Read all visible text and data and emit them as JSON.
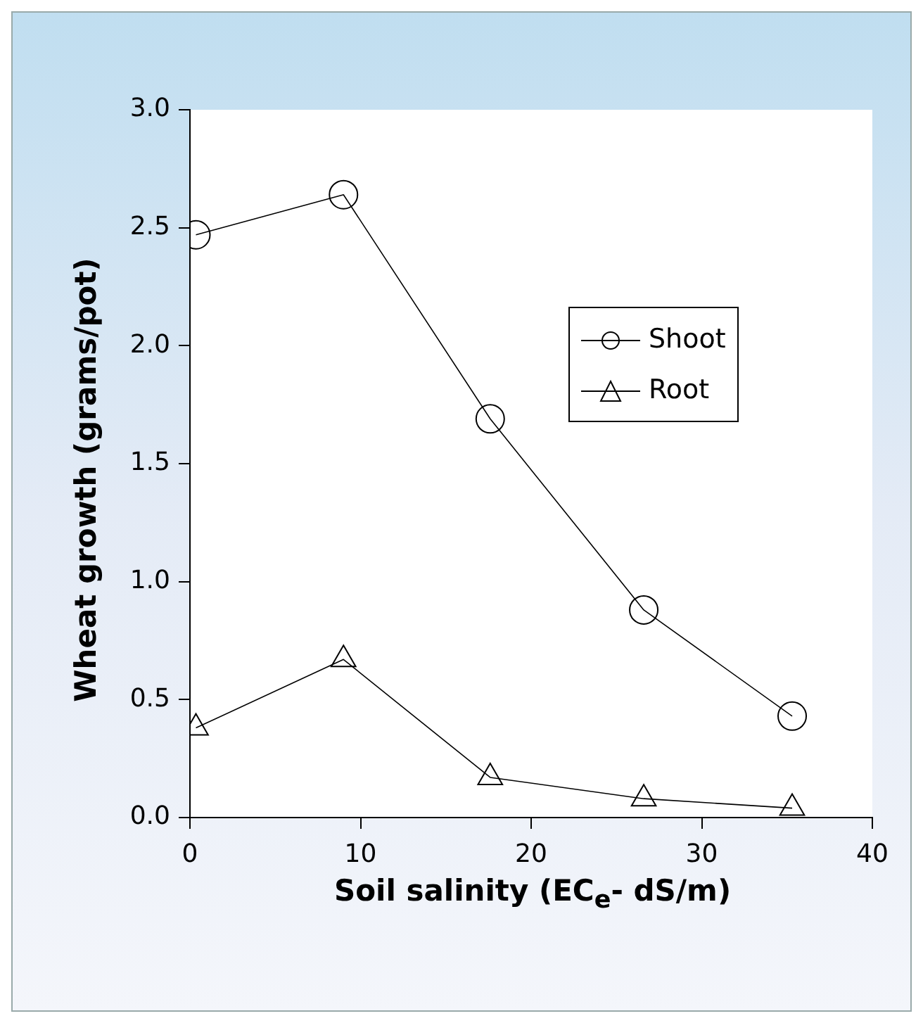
{
  "chart_data": {
    "type": "line",
    "xlabel": "Soil salinity (EC$_{e}$- dS/m)",
    "ylabel": "Wheat growth (grams/pot)",
    "x": [
      0.35,
      9.0,
      17.6,
      26.6,
      35.3
    ],
    "series": [
      {
        "name": "Shoot",
        "color": "#000000",
        "marker": "circle",
        "values": [
          2.47,
          2.64,
          1.69,
          0.88,
          0.43
        ]
      },
      {
        "name": "Root",
        "color": "#000000",
        "marker": "triangle",
        "values": [
          0.38,
          0.67,
          0.17,
          0.08,
          0.04
        ]
      }
    ],
    "xlim": [
      0,
      40
    ],
    "xticks": [
      0,
      10,
      20,
      30,
      40
    ],
    "ylim": [
      0,
      3
    ],
    "yticks": [
      {
        "value": 0,
        "label": "0.0"
      },
      {
        "value": 0.5,
        "label": "0.5"
      },
      {
        "value": 1,
        "label": "1.0"
      },
      {
        "value": 1.5,
        "label": "1.5"
      },
      {
        "value": 2,
        "label": "2.0"
      },
      {
        "value": 2.5,
        "label": "2.5"
      },
      {
        "value": 3,
        "label": "3.0"
      }
    ],
    "grid": false,
    "legend": "right",
    "line_style": "solid"
  }
}
